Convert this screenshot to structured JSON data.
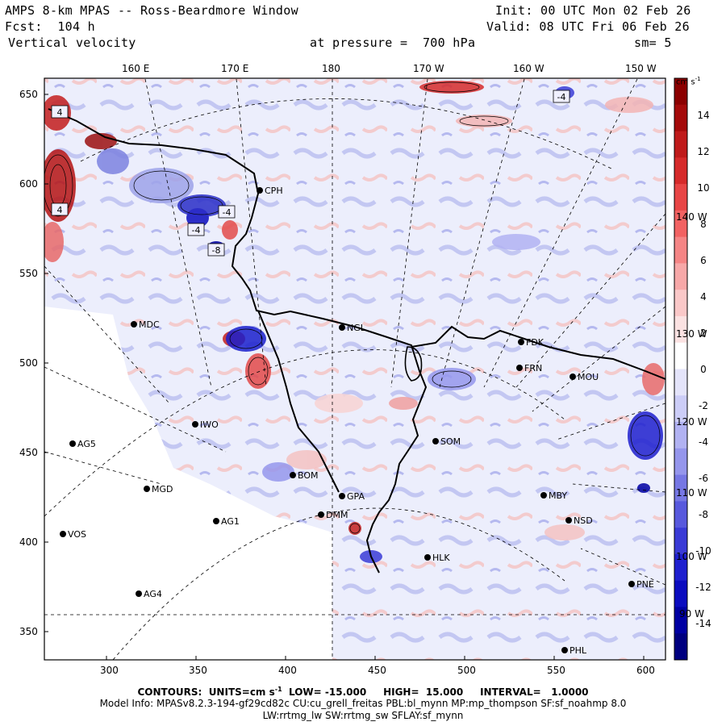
{
  "header": {
    "title": "AMPS 8-km MPAS -- Ross-Beardmore Window",
    "init": "Init: 00 UTC Mon 02 Feb 26",
    "forecast": "Fcst:  104 h",
    "valid": "Valid: 08 UTC Fri 06 Feb 26",
    "field": "Vertical velocity",
    "pressure": "at pressure =  700 hPa",
    "smoothing": "sm= 5"
  },
  "axes": {
    "top_lon_labels": [
      "160 E",
      "170 E",
      "180",
      "170 W",
      "160 W",
      "150 W"
    ],
    "right_lon_labels": [
      "140 W",
      "130 W",
      "120 W",
      "110 W",
      "100 W",
      "90 W"
    ],
    "y_ticks": [
      "650",
      "600",
      "550",
      "500",
      "450",
      "400",
      "350"
    ],
    "x_ticks": [
      "300",
      "350",
      "400",
      "450",
      "500",
      "550",
      "600"
    ]
  },
  "colorbar": {
    "units": "cm s",
    "units_exp": "-1",
    "labels": [
      "14",
      "12",
      "10",
      "8",
      "6",
      "4",
      "2",
      "0",
      "-2",
      "-4",
      "-6",
      "-8",
      "-10",
      "-12",
      "-14"
    ],
    "colors": [
      "#8b0000",
      "#a50a0a",
      "#bf1a1a",
      "#d62a2a",
      "#e84545",
      "#f26262",
      "#f58585",
      "#f7a8a8",
      "#fac8c8",
      "#fbe2e2",
      "#ffffff",
      "#e4e4fa",
      "#cccdf7",
      "#b1b2f2",
      "#9596ec",
      "#7677e4",
      "#5859dd",
      "#3a3bd6",
      "#1f20cf",
      "#0b0cbf",
      "#0000a3",
      "#000080"
    ]
  },
  "stations": [
    {
      "name": "CPH"
    },
    {
      "name": "MDC"
    },
    {
      "name": "NGL"
    },
    {
      "name": "FDK"
    },
    {
      "name": "FRN"
    },
    {
      "name": "MOU"
    },
    {
      "name": "IWO"
    },
    {
      "name": "AG5"
    },
    {
      "name": "SOM"
    },
    {
      "name": "MGD"
    },
    {
      "name": "BOM"
    },
    {
      "name": "GPA"
    },
    {
      "name": "AG1"
    },
    {
      "name": "DMM"
    },
    {
      "name": "MBY"
    },
    {
      "name": "NSD"
    },
    {
      "name": "VOS"
    },
    {
      "name": "HLK"
    },
    {
      "name": "PNE"
    },
    {
      "name": "AG4"
    },
    {
      "name": "PHL"
    }
  ],
  "contour_labels": [
    "-4",
    "4",
    "4",
    "-4",
    "-4",
    "-8"
  ],
  "footer": {
    "contours": "CONTOURS:  UNITS=cm s",
    "contours_exp": "-1",
    "contours_rest": "  LOW= -15.000     HIGH=  15.000     INTERVAL=   1.0000",
    "model_info": "Model Info: MPASv8.2.3-194-gf29cd82c CU:cu_grell_freitas PBL:bl_mynn MP:mp_thompson SF:sf_noahmp 8.0",
    "model_info2": "LW:rrtmg_lw SW:rrtmg_sw SFLAY:sf_mynn"
  }
}
